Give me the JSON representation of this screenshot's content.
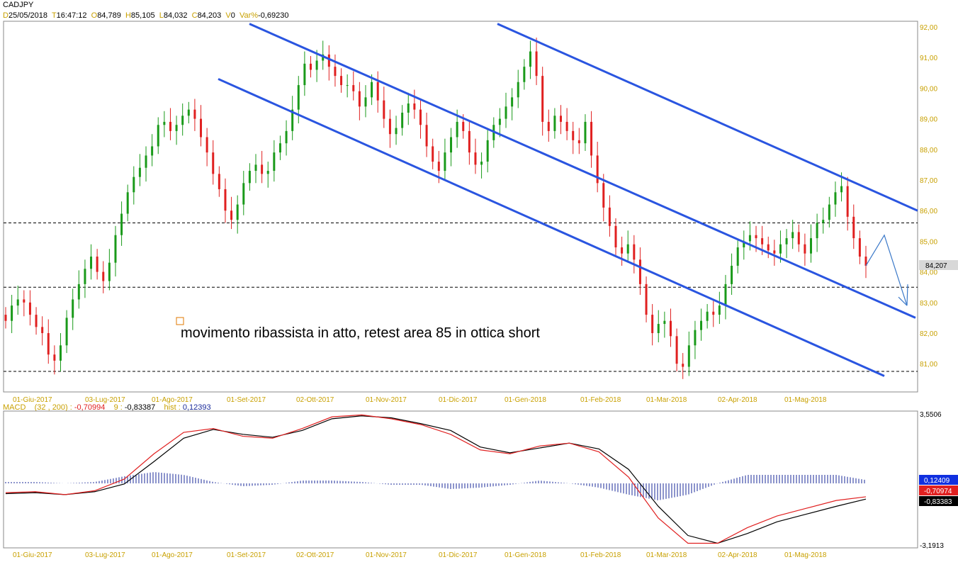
{
  "header": {
    "symbol": "CADJPY",
    "date_key": "D",
    "date": "25/05/2018",
    "time_key": "T",
    "time": "16:47:12",
    "open_key": "O",
    "open": "84,789",
    "high_key": "H",
    "high": "85,105",
    "low_key": "L",
    "low": "84,032",
    "close_key": "C",
    "close": "84,203",
    "volume_key": "V",
    "volume": "0",
    "var_key": "Var%",
    "var": "-0,69230"
  },
  "macd_header": {
    "name": "MACD",
    "params": "(32 , 200) :",
    "macd_value": "-0,70994",
    "signal_param": "9 :",
    "signal_value": "-0,83387",
    "hist_label": "hist :",
    "hist_value": "0,12393"
  },
  "annotation": "movimento ribassista in atto, retest area 85 in ottica short",
  "price_badge": "84,207",
  "macd_badges": [
    "0,12409",
    "-0,70974",
    "-0,83383"
  ],
  "colors": {
    "up_candle": "#1a9a1a",
    "down_candle": "#e02020",
    "channel_line": "#2a55e0",
    "macd_line": "#e02020",
    "signal_line": "#000000",
    "histogram": "#1a2a9a",
    "axis_label": "#c8a000",
    "forecast_arrow": "#3a78c8"
  },
  "chart_data": [
    {
      "type": "candlestick",
      "title": "CADJPY",
      "x_tick_labels": [
        "01-Giu-2017",
        "03-Lug-2017",
        "01-Ago-2017",
        "01-Set-2017",
        "02-Ott-2017",
        "01-Nov-2017",
        "01-Dic-2017",
        "01-Gen-2018",
        "01-Feb-2018",
        "01-Mar-2018",
        "02-Apr-2018",
        "01-Mag-2018"
      ],
      "y_tick_labels": [
        "81,00",
        "82,00",
        "83,00",
        "84,00",
        "85,00",
        "86,00",
        "87,00",
        "88,00",
        "89,00",
        "90,00",
        "91,00",
        "92,00"
      ],
      "ylim": [
        80.4,
        92.1
      ],
      "grid": false,
      "closes": [
        82.4,
        82.9,
        83.1,
        83.0,
        82.6,
        82.2,
        82.0,
        81.3,
        81.1,
        81.6,
        82.5,
        83.1,
        83.6,
        84.1,
        84.5,
        84.0,
        83.7,
        84.3,
        85.2,
        85.9,
        86.6,
        87.1,
        87.4,
        87.8,
        88.1,
        88.8,
        88.9,
        88.6,
        88.8,
        89.1,
        89.3,
        89.0,
        88.4,
        87.9,
        87.2,
        86.7,
        86.0,
        85.7,
        86.2,
        86.9,
        87.3,
        87.5,
        87.2,
        87.3,
        87.9,
        88.2,
        88.6,
        89.3,
        90.1,
        90.8,
        90.6,
        90.9,
        91.1,
        90.7,
        90.4,
        90.1,
        90.1,
        89.9,
        89.4,
        89.7,
        90.2,
        89.6,
        89.0,
        88.5,
        88.7,
        89.2,
        89.5,
        89.3,
        88.8,
        88.1,
        87.6,
        87.3,
        87.9,
        88.4,
        88.9,
        88.6,
        87.9,
        87.5,
        87.6,
        88.3,
        88.8,
        89.0,
        89.4,
        89.7,
        90.2,
        90.7,
        91.2,
        90.4,
        88.9,
        88.6,
        89.1,
        88.9,
        88.6,
        88.3,
        88.2,
        88.9,
        87.8,
        86.9,
        86.1,
        85.5,
        84.8,
        84.6,
        84.9,
        84.4,
        83.6,
        82.6,
        82.0,
        82.3,
        82.4,
        81.9,
        81.0,
        80.9,
        81.6,
        82.1,
        82.4,
        82.7,
        82.6,
        82.9,
        83.6,
        84.2,
        84.8,
        85.0,
        85.2,
        85.1,
        84.9,
        84.7,
        84.6,
        84.9,
        85.1,
        85.3,
        84.9,
        84.6,
        85.1,
        85.6,
        85.7,
        86.2,
        86.6,
        86.8,
        85.8,
        85.1,
        84.5,
        84.2
      ],
      "series": [
        {
          "name": "price_candles"
        }
      ],
      "horizontal_levels": [
        85.6,
        83.5,
        80.75
      ],
      "channel_lines": [
        {
          "from": [
            "mid-Ago-2017",
            90.3
          ],
          "to": [
            "end-May-2018",
            80.6
          ]
        },
        {
          "from": [
            "end-Ago-2017",
            92.1
          ],
          "to": [
            "end-May-2018",
            82.5
          ]
        },
        {
          "from": [
            "end-Dic-2017",
            92.1
          ],
          "to": [
            "end-May-2018",
            86.0
          ]
        }
      ],
      "forecast_path": [
        84.2,
        85.2,
        82.9
      ]
    },
    {
      "type": "line",
      "title": "MACD",
      "y_tick_labels": [
        "3,5506",
        "-3,1913"
      ],
      "ylim": [
        -3.1913,
        3.5506
      ],
      "series": [
        {
          "name": "macd",
          "color": "#e02020"
        },
        {
          "name": "signal",
          "color": "#000000"
        },
        {
          "name": "hist",
          "color": "#1a2a9a"
        }
      ],
      "x_tick_labels": [
        "01-Giu-2017",
        "03-Lug-2017",
        "01-Ago-2017",
        "01-Set-2017",
        "02-Ott-2017",
        "01-Nov-2017",
        "01-Dic-2017",
        "01-Gen-2018",
        "01-Feb-2018",
        "01-Mar-2018",
        "02-Apr-2018",
        "01-Mag-2018"
      ],
      "macd_points": [
        -0.5,
        -0.45,
        -0.6,
        -0.4,
        0.2,
        1.5,
        2.6,
        2.8,
        2.4,
        2.3,
        2.8,
        3.4,
        3.5,
        3.3,
        3.0,
        2.5,
        1.7,
        1.5,
        1.9,
        2.05,
        1.6,
        0.3,
        -1.8,
        -3.1,
        -3.1,
        -2.3,
        -1.7,
        -1.3,
        -0.9,
        -0.71
      ],
      "signal_points": [
        -0.55,
        -0.5,
        -0.6,
        -0.45,
        -0.05,
        1.1,
        2.3,
        2.75,
        2.5,
        2.35,
        2.7,
        3.3,
        3.45,
        3.35,
        3.05,
        2.7,
        1.85,
        1.55,
        1.8,
        2.05,
        1.75,
        0.7,
        -1.2,
        -2.7,
        -3.1,
        -2.6,
        -2.0,
        -1.6,
        -1.2,
        -0.83
      ]
    }
  ]
}
